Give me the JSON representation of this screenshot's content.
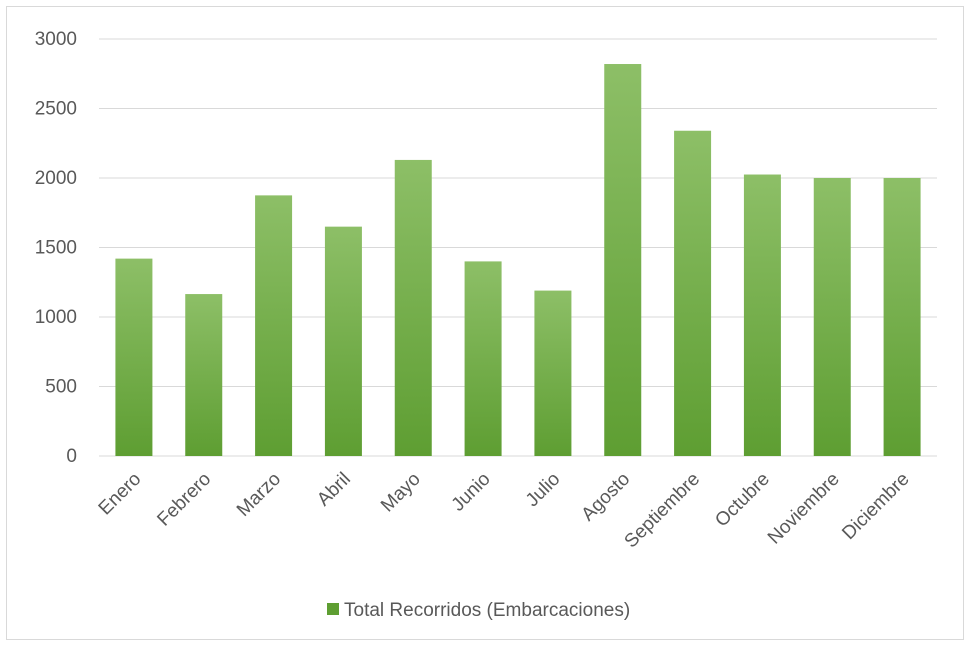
{
  "chart_data": {
    "type": "bar",
    "categories": [
      "Enero",
      "Febrero",
      "Marzo",
      "Abril",
      "Mayo",
      "Junio",
      "Julio",
      "Agosto",
      "Septiembre",
      "Octubre",
      "Noviembre",
      "Diciembre"
    ],
    "series": [
      {
        "name": "Total Recorridos (Embarcaciones)",
        "values": [
          1420,
          1165,
          1875,
          1650,
          2130,
          1400,
          1190,
          2820,
          2340,
          2025,
          2000,
          2000
        ]
      }
    ],
    "title": "",
    "xlabel": "",
    "ylabel": "",
    "ylim": [
      0,
      3000
    ],
    "yticks": [
      0,
      500,
      1000,
      1500,
      2000,
      2500,
      3000
    ],
    "grid": true,
    "legend_position": "bottom",
    "colors": {
      "bar_top": "#8dbf67",
      "bar_bottom": "#5e9e32",
      "grid": "#d9d9d9",
      "text": "#595959"
    }
  }
}
